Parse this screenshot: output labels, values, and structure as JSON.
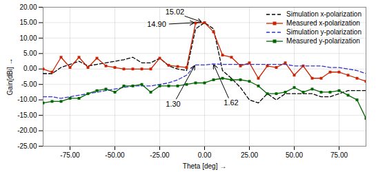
{
  "chart_data": {
    "type": "line",
    "xlabel": "Theta [deg]",
    "ylabel": "Gain[dBi]",
    "xlim": [
      -90,
      90
    ],
    "ylim": [
      -25,
      20
    ],
    "xticks": [
      {
        "value": -75,
        "label": "-75.00"
      },
      {
        "value": -50,
        "label": "-50.00"
      },
      {
        "value": -25,
        "label": "-25.00"
      },
      {
        "value": 0,
        "label": "0.00"
      },
      {
        "value": 25,
        "label": "25.00"
      },
      {
        "value": 50,
        "label": "50.00"
      },
      {
        "value": 75,
        "label": "75.00"
      }
    ],
    "yticks": [
      {
        "value": -25,
        "label": "-25.00"
      },
      {
        "value": -20,
        "label": "-20.00"
      },
      {
        "value": -15,
        "label": "-15.00"
      },
      {
        "value": -10,
        "label": "-10.00"
      },
      {
        "value": -5,
        "label": "-5.00"
      },
      {
        "value": 0,
        "label": "0.00"
      },
      {
        "value": 5,
        "label": "5.00"
      },
      {
        "value": 10,
        "label": "10.00"
      },
      {
        "value": 15,
        "label": "15.00"
      },
      {
        "value": 20,
        "label": "20.00"
      }
    ],
    "grid": true,
    "legend": "upper right",
    "x": [
      -90,
      -85,
      -80,
      -75,
      -70,
      -65,
      -60,
      -55,
      -50,
      -45,
      -40,
      -35,
      -30,
      -25,
      -20,
      -15,
      -10,
      -5,
      0,
      5,
      10,
      15,
      20,
      25,
      30,
      35,
      40,
      45,
      50,
      55,
      60,
      65,
      70,
      75,
      80,
      85,
      90
    ],
    "series": [
      {
        "name": "Simulation x-polarization",
        "color": "black",
        "line_style": "dashed",
        "values": [
          -1.5,
          -1.5,
          0.5,
          1.5,
          2.5,
          1.0,
          1.5,
          2.0,
          2.5,
          3.0,
          3.8,
          2.0,
          2.0,
          3.5,
          1.0,
          0.0,
          -0.5,
          13.0,
          15.02,
          13.0,
          -0.5,
          -3.0,
          -6.0,
          -10.0,
          -11.0,
          -8.0,
          -10.0,
          -8.0,
          -8.0,
          -8.0,
          -8.0,
          -9.0,
          -9.0,
          -8.0,
          -7.0,
          -7.0,
          -7.0
        ]
      },
      {
        "name": "Measured x-polarization",
        "color": "#cc2200",
        "line_style": "solid",
        "marker": "square",
        "values": [
          0.0,
          -1.0,
          3.8,
          0.5,
          3.8,
          0.5,
          3.5,
          1.0,
          0.5,
          0.0,
          0.0,
          0.0,
          0.0,
          3.5,
          1.2,
          0.8,
          0.5,
          14.9,
          15.0,
          12.0,
          4.5,
          3.8,
          1.0,
          2.0,
          -3.0,
          1.0,
          0.5,
          2.0,
          -2.0,
          1.0,
          -3.0,
          -3.0,
          -1.0,
          -1.0,
          -2.0,
          -3.0,
          -4.0
        ]
      },
      {
        "name": "Simulation y-polarization",
        "color": "#3333cc",
        "line_style": "dashed",
        "values": [
          -9.0,
          -9.0,
          -9.5,
          -9.0,
          -8.5,
          -8.0,
          -7.5,
          -7.0,
          -6.5,
          -6.0,
          -5.5,
          -5.5,
          -5.5,
          -5.0,
          -4.5,
          -3.5,
          -2.0,
          1.3,
          1.3,
          1.62,
          1.5,
          1.5,
          1.5,
          1.5,
          1.5,
          1.5,
          1.5,
          1.5,
          1.0,
          1.0,
          1.0,
          1.0,
          0.5,
          0.5,
          0.0,
          -0.5,
          -1.5
        ]
      },
      {
        "name": "Measured y-polarization",
        "color": "#006600",
        "line_style": "solid",
        "marker": "square",
        "values": [
          -11.0,
          -10.5,
          -10.5,
          -9.5,
          -9.5,
          -8.0,
          -7.0,
          -6.5,
          -7.5,
          -5.5,
          -5.5,
          -5.0,
          -7.5,
          -5.5,
          -5.5,
          -5.5,
          -5.0,
          -4.5,
          -4.5,
          -3.5,
          -3.0,
          -3.5,
          -3.5,
          -4.0,
          -5.5,
          -8.0,
          -8.0,
          -7.5,
          -6.0,
          -7.5,
          -6.5,
          -7.5,
          -7.5,
          -7.0,
          -8.5,
          -10.0,
          -16.0
        ]
      }
    ],
    "annotations": [
      {
        "text": "15.02",
        "x": -1,
        "y": 15.02
      },
      {
        "text": "14.90",
        "x": -5,
        "y": 14.9
      },
      {
        "text": "1.30",
        "x": -5,
        "y": 1.3
      },
      {
        "text": "1.62",
        "x": 5,
        "y": 1.62
      }
    ]
  }
}
